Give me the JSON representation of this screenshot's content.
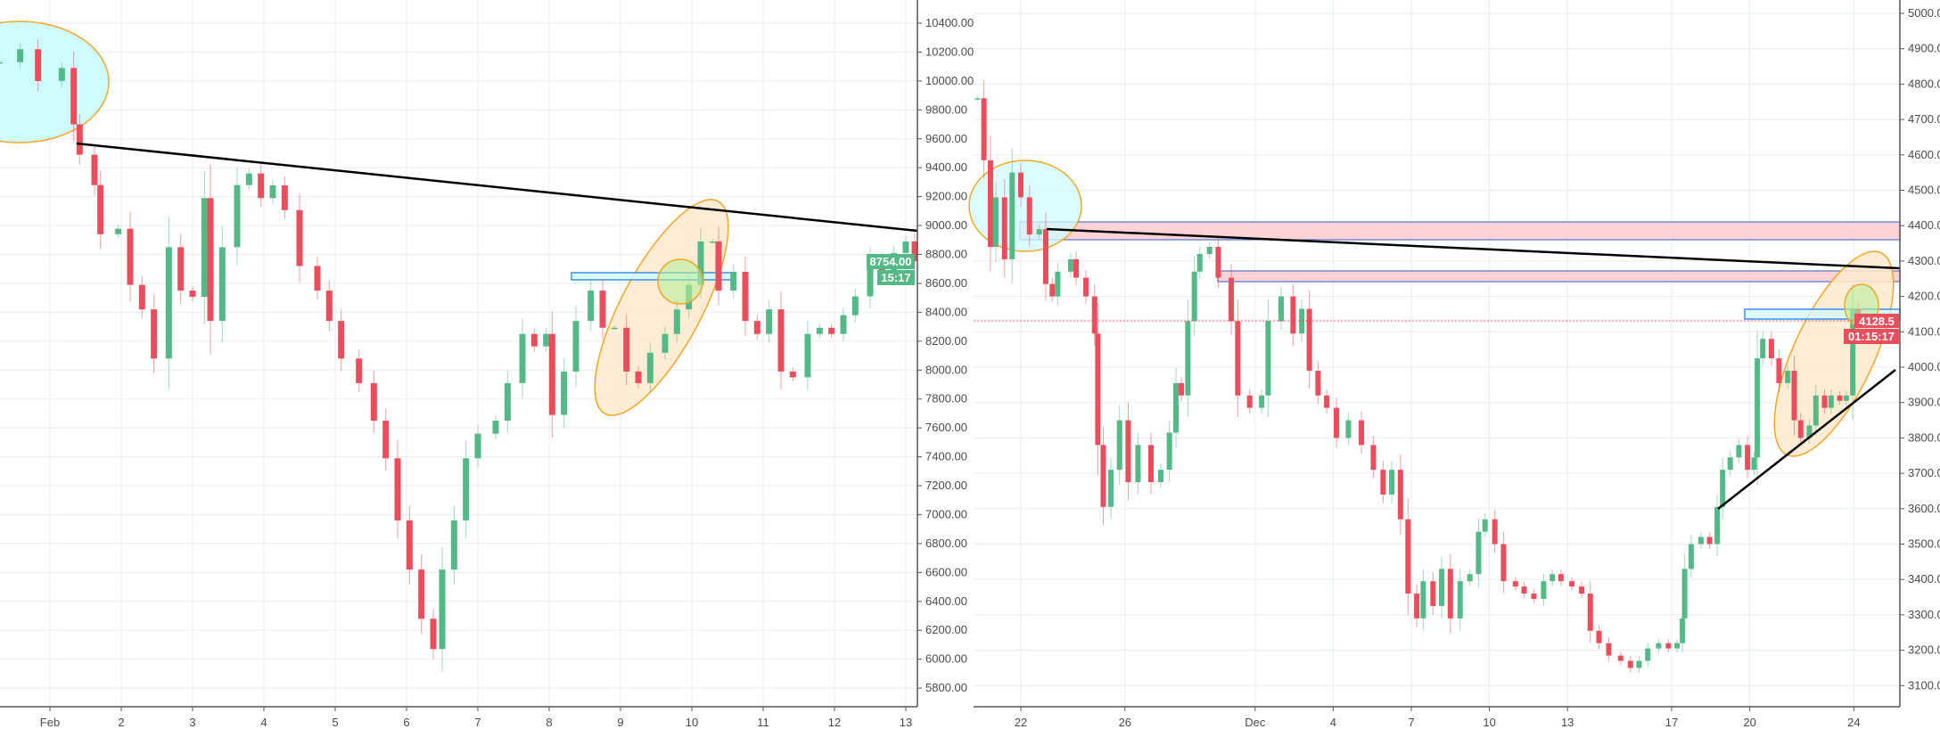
{
  "colors": {
    "up": "#53b987",
    "down": "#eb4d5c",
    "grid": "#e6eef3",
    "axis": "#555555",
    "zone_pink": "#ffd3d6",
    "zone_cyan": "#cffcff",
    "ellipse_orange": "#ffe9cc",
    "ellipse_stroke": "#f5a623",
    "circle_green": "#b7ee9c",
    "trendline": "#000000"
  },
  "chart_data": [
    {
      "type": "candlestick",
      "title": "",
      "ylim": [
        5700,
        10500
      ],
      "y_ticks": [
        "5800.00",
        "6000.00",
        "6200.00",
        "6400.00",
        "6600.00",
        "6800.00",
        "7000.00",
        "7200.00",
        "7400.00",
        "7600.00",
        "7800.00",
        "8000.00",
        "8200.00",
        "8400.00",
        "8600.00",
        "8800.00",
        "9000.00",
        "9200.00",
        "9400.00",
        "9600.00",
        "9800.00",
        "10000.00",
        "10200.00",
        "10400.00"
      ],
      "x_ticks": [
        {
          "label": "Feb",
          "time": "Feb 1 00:00"
        },
        {
          "label": "2",
          "time": "Feb 2 00:00"
        },
        {
          "label": "3",
          "time": "Feb 3 00:00"
        },
        {
          "label": "4",
          "time": "Feb 4 00:00"
        },
        {
          "label": "5",
          "time": "Feb 5 00:00"
        },
        {
          "label": "6",
          "time": "Feb 6 00:00"
        },
        {
          "label": "7",
          "time": "Feb 7 00:00"
        },
        {
          "label": "8",
          "time": "Feb 8 00:00"
        },
        {
          "label": "9",
          "time": "Feb 9 00:00"
        },
        {
          "label": "10",
          "time": "Feb 10 00:00"
        },
        {
          "label": "11",
          "time": "Feb 11 00:00"
        },
        {
          "label": "12",
          "time": "Feb 12 00:00"
        },
        {
          "label": "13",
          "time": "Feb 13 00:00"
        }
      ],
      "last_price": "8754.00",
      "countdown": "15:17",
      "candles_close": [
        [
          "Jan 31 07:00",
          10130
        ],
        [
          "Jan 31 14:00",
          10220
        ],
        [
          "Jan 31 20:00",
          10000
        ],
        [
          "Feb 1 04:00",
          10090
        ],
        [
          "Feb 1 08:00",
          9700
        ],
        [
          "Feb 1 10:00",
          9490
        ],
        [
          "Feb 1 15:00",
          9280
        ],
        [
          "Feb 1 17:00",
          8940
        ],
        [
          "Feb 1 23:00",
          8978
        ],
        [
          "Feb 2 03:00",
          8590
        ],
        [
          "Feb 2 07:00",
          8420
        ],
        [
          "Feb 2 11:00",
          8080
        ],
        [
          "Feb 2 16:00",
          8850
        ],
        [
          "Feb 2 20:00",
          8550
        ],
        [
          "Feb 3 00:00",
          8507
        ],
        [
          "Feb 3 04:00",
          9190
        ],
        [
          "Feb 3 06:00",
          8340
        ],
        [
          "Feb 3 10:00",
          8850
        ],
        [
          "Feb 3 15:00",
          9280
        ],
        [
          "Feb 3 19:00",
          9360
        ],
        [
          "Feb 3 23:00",
          9190
        ],
        [
          "Feb 4 03:00",
          9278
        ],
        [
          "Feb 4 07:00",
          9107
        ],
        [
          "Feb 4 12:00",
          8720
        ],
        [
          "Feb 4 18:00",
          8550
        ],
        [
          "Feb 4 22:00",
          8340
        ],
        [
          "Feb 5 02:00",
          8080
        ],
        [
          "Feb 5 08:00",
          7910
        ],
        [
          "Feb 5 13:00",
          7650
        ],
        [
          "Feb 5 17:00",
          7390
        ],
        [
          "Feb 5 21:00",
          6960
        ],
        [
          "Feb 6 01:00",
          6620
        ],
        [
          "Feb 6 05:00",
          6280
        ],
        [
          "Feb 6 09:00",
          6070
        ],
        [
          "Feb 6 12:00",
          6620
        ],
        [
          "Feb 6 16:00",
          6960
        ],
        [
          "Feb 6 20:00",
          7390
        ],
        [
          "Feb 7 00:00",
          7560
        ],
        [
          "Feb 7 06:00",
          7650
        ],
        [
          "Feb 7 10:00",
          7910
        ],
        [
          "Feb 7 15:00",
          8250
        ],
        [
          "Feb 7 19:00",
          8164
        ],
        [
          "Feb 7 23:00",
          8250
        ],
        [
          "Feb 8 01:00",
          7690
        ],
        [
          "Feb 8 05:00",
          7990
        ],
        [
          "Feb 8 09:00",
          8340
        ],
        [
          "Feb 8 14:00",
          8550
        ],
        [
          "Feb 8 18:00",
          8293
        ],
        [
          "Feb 8 22:00",
          8293
        ],
        [
          "Feb 9 02:00",
          7990
        ],
        [
          "Feb 9 06:00",
          7910
        ],
        [
          "Feb 9 10:00",
          8120
        ],
        [
          "Feb 9 15:00",
          8250
        ],
        [
          "Feb 9 19:00",
          8420
        ],
        [
          "Feb 9 23:00",
          8590
        ],
        [
          "Feb 10 03:00",
          8890
        ],
        [
          "Feb 10 07:00",
          8890
        ],
        [
          "Feb 10 09:00",
          8550
        ],
        [
          "Feb 10 14:00",
          8680
        ],
        [
          "Feb 10 18:00",
          8340
        ],
        [
          "Feb 10 22:00",
          8250
        ],
        [
          "Feb 11 02:00",
          8420
        ],
        [
          "Feb 11 06:00",
          7990
        ],
        [
          "Feb 11 10:00",
          7950
        ],
        [
          "Feb 11 15:00",
          8250
        ],
        [
          "Feb 11 19:00",
          8293
        ],
        [
          "Feb 11 23:00",
          8250
        ],
        [
          "Feb 12 03:00",
          8380
        ],
        [
          "Feb 12 07:00",
          8510
        ],
        [
          "Feb 12 12:00",
          8770
        ],
        [
          "Feb 12 16:00",
          8680
        ],
        [
          "Feb 12 20:00",
          8810
        ],
        [
          "Feb 13 00:00",
          8890
        ],
        [
          "Feb 13 03:00",
          8754
        ]
      ]
    },
    {
      "type": "candlestick",
      "title": "",
      "ylim": [
        3050,
        5000
      ],
      "y_ticks": [
        "3100.0",
        "3200.0",
        "3300.0",
        "3400.0",
        "3500.0",
        "3600.0",
        "3700.0",
        "3800.0",
        "3900.0",
        "4000.0",
        "4100.0",
        "4200.0",
        "4300.0",
        "4400.0",
        "4500.0",
        "4600.0",
        "4700.0",
        "4800.0",
        "4900.0",
        "5000.0"
      ],
      "x_ticks": [
        {
          "label": "22",
          "time": "Nov 22 00:00"
        },
        {
          "label": "26",
          "time": "Nov 26 00:00"
        },
        {
          "label": "Dec",
          "time": "Dec 1 00:00"
        },
        {
          "label": "4",
          "time": "Dec 4 00:00"
        },
        {
          "label": "7",
          "time": "Dec 7 00:00"
        },
        {
          "label": "10",
          "time": "Dec 10 00:00"
        },
        {
          "label": "13",
          "time": "Dec 13 00:00"
        },
        {
          "label": "17",
          "time": "Dec 17 00:00"
        },
        {
          "label": "20",
          "time": "Dec 20 00:00"
        },
        {
          "label": "24",
          "time": "Dec 24 00:00"
        }
      ],
      "last_price": "4128.5",
      "countdown": "01:15:17",
      "candles_close": [
        [
          "Nov 20 08:00",
          4760
        ],
        [
          "Nov 20 14:00",
          4585
        ],
        [
          "Nov 20 20:00",
          4340
        ],
        [
          "Nov 21 01:00",
          4480
        ],
        [
          "Nov 21 09:00",
          4305
        ],
        [
          "Nov 21 16:00",
          4550
        ],
        [
          "Nov 22 00:00",
          4480
        ],
        [
          "Nov 22 08:00",
          4375
        ],
        [
          "Nov 22 17:00",
          4390
        ],
        [
          "Nov 22 23:00",
          4235
        ],
        [
          "Nov 23 05:00",
          4200
        ],
        [
          "Nov 23 10:00",
          4270
        ],
        [
          "Nov 23 22:00",
          4305
        ],
        [
          "Nov 24 03:00",
          4253
        ],
        [
          "Nov 24 12:00",
          4200
        ],
        [
          "Nov 24 20:00",
          4095
        ],
        [
          "Nov 24 23:00",
          3780
        ],
        [
          "Nov 25 04:00",
          3605
        ],
        [
          "Nov 25 11:00",
          3710
        ],
        [
          "Nov 25 19:00",
          3850
        ],
        [
          "Nov 26 03:00",
          3675
        ],
        [
          "Nov 26 12:00",
          3780
        ],
        [
          "Nov 27 00:00",
          3675
        ],
        [
          "Nov 27 09:00",
          3710
        ],
        [
          "Nov 27 17:00",
          3815
        ],
        [
          "Nov 27 23:00",
          3955
        ],
        [
          "Nov 28 04:00",
          3920
        ],
        [
          "Nov 28 10:00",
          4130
        ],
        [
          "Nov 28 16:00",
          4270
        ],
        [
          "Nov 28 21:00",
          4320
        ],
        [
          "Nov 29 06:00",
          4340
        ],
        [
          "Nov 29 14:00",
          4253
        ],
        [
          "Nov 30 02:00",
          4130
        ],
        [
          "Nov 30 08:00",
          3920
        ],
        [
          "Nov 30 19:00",
          3885
        ],
        [
          "Dec 1 06:00",
          3920
        ],
        [
          "Dec 1 12:00",
          4130
        ],
        [
          "Dec 2 00:00",
          4200
        ],
        [
          "Dec 2 11:00",
          4095
        ],
        [
          "Dec 2 19:00",
          4165
        ],
        [
          "Dec 3 02:00",
          3990
        ],
        [
          "Dec 3 10:00",
          3920
        ],
        [
          "Dec 3 18:00",
          3885
        ],
        [
          "Dec 4 03:00",
          3800
        ],
        [
          "Dec 4 14:00",
          3850
        ],
        [
          "Dec 5 02:00",
          3780
        ],
        [
          "Dec 5 13:00",
          3710
        ],
        [
          "Dec 5 22:00",
          3640
        ],
        [
          "Dec 6 06:00",
          3710
        ],
        [
          "Dec 6 14:00",
          3570
        ],
        [
          "Dec 6 21:00",
          3360
        ],
        [
          "Dec 7 05:00",
          3290
        ],
        [
          "Dec 7 11:00",
          3395
        ],
        [
          "Dec 7 20:00",
          3325
        ],
        [
          "Dec 8 04:00",
          3430
        ],
        [
          "Dec 8 12:00",
          3290
        ],
        [
          "Dec 8 21:00",
          3395
        ],
        [
          "Dec 9 06:00",
          3415
        ],
        [
          "Dec 9 14:00",
          3535
        ],
        [
          "Dec 9 20:00",
          3570
        ],
        [
          "Dec 10 05:00",
          3500
        ],
        [
          "Dec 10 13:00",
          3395
        ],
        [
          "Dec 11 00:00",
          3380
        ],
        [
          "Dec 11 08:00",
          3360
        ],
        [
          "Dec 11 17:00",
          3345
        ],
        [
          "Dec 12 02:00",
          3395
        ],
        [
          "Dec 12 10:00",
          3415
        ],
        [
          "Dec 12 18:00",
          3395
        ],
        [
          "Dec 13 04:00",
          3380
        ],
        [
          "Dec 13 13:00",
          3360
        ],
        [
          "Dec 13 21:00",
          3255
        ],
        [
          "Dec 14 05:00",
          3220
        ],
        [
          "Dec 14 14:00",
          3185
        ],
        [
          "Dec 15 01:00",
          3170
        ],
        [
          "Dec 15 10:00",
          3150
        ],
        [
          "Dec 15 18:00",
          3170
        ],
        [
          "Dec 16 02:00",
          3205
        ],
        [
          "Dec 16 12:00",
          3220
        ],
        [
          "Dec 16 21:00",
          3205
        ],
        [
          "Dec 17 05:00",
          3220
        ],
        [
          "Dec 17 10:00",
          3290
        ],
        [
          "Dec 17 12:00",
          3430
        ],
        [
          "Dec 17 18:00",
          3500
        ],
        [
          "Dec 18 03:00",
          3520
        ],
        [
          "Dec 18 11:00",
          3500
        ],
        [
          "Dec 18 18:00",
          3605
        ],
        [
          "Dec 18 23:00",
          3710
        ],
        [
          "Dec 19 06:00",
          3745
        ],
        [
          "Dec 19 14:00",
          3780
        ],
        [
          "Dec 19 22:00",
          3710
        ],
        [
          "Dec 20 04:00",
          3745
        ],
        [
          "Dec 20 07:00",
          4025
        ],
        [
          "Dec 20 12:00",
          4080
        ],
        [
          "Dec 20 20:00",
          4025
        ],
        [
          "Dec 21 03:00",
          3955
        ],
        [
          "Dec 21 11:00",
          3990
        ],
        [
          "Dec 21 17:00",
          3850
        ],
        [
          "Dec 21 23:00",
          3800
        ],
        [
          "Dec 22 07:00",
          3835
        ],
        [
          "Dec 22 13:00",
          3920
        ],
        [
          "Dec 22 21:00",
          3885
        ],
        [
          "Dec 23 03:00",
          3920
        ],
        [
          "Dec 23 11:00",
          3905
        ],
        [
          "Dec 23 17:00",
          3920
        ],
        [
          "Dec 23 23:00",
          4165
        ],
        [
          "Dec 24 04:00",
          4115
        ],
        [
          "Dec 24 11:00",
          4128.5
        ]
      ]
    }
  ]
}
